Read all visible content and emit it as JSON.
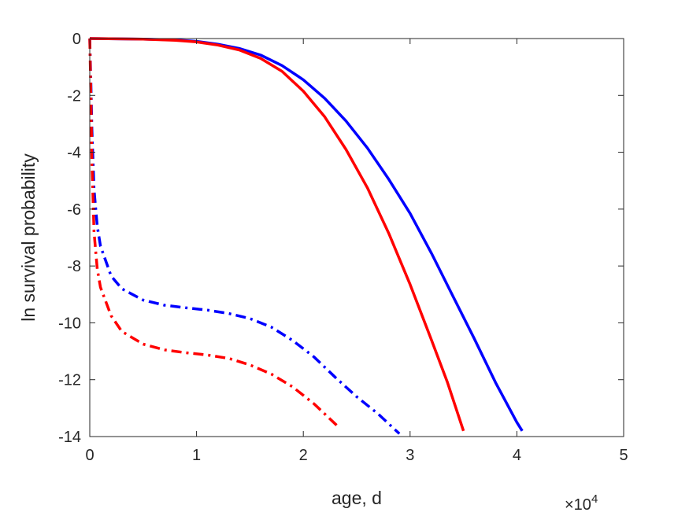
{
  "chart_data": {
    "type": "line",
    "xlabel": "age, d",
    "ylabel": "ln survival probability",
    "x_exponent_label": "×10",
    "x_exponent_power": "4",
    "xlim": [
      0,
      50000
    ],
    "ylim": [
      -14,
      0
    ],
    "x_ticks": [
      0,
      10000,
      20000,
      30000,
      40000,
      50000
    ],
    "x_tick_labels": [
      "0",
      "1",
      "2",
      "3",
      "4",
      "5"
    ],
    "y_ticks": [
      0,
      -2,
      -4,
      -6,
      -8,
      -10,
      -12,
      -14
    ],
    "y_tick_labels": [
      "0",
      "-2",
      "-4",
      "-6",
      "-8",
      "-10",
      "-12",
      "-14"
    ],
    "grid": false,
    "box": true,
    "series": [
      {
        "color": "#0000ff",
        "dash": "solid",
        "points": [
          [
            0,
            0
          ],
          [
            5000,
            -0.02
          ],
          [
            8000,
            -0.05
          ],
          [
            10000,
            -0.1
          ],
          [
            12000,
            -0.2
          ],
          [
            14000,
            -0.35
          ],
          [
            16000,
            -0.58
          ],
          [
            18000,
            -0.95
          ],
          [
            20000,
            -1.45
          ],
          [
            22000,
            -2.1
          ],
          [
            24000,
            -2.9
          ],
          [
            26000,
            -3.85
          ],
          [
            28000,
            -4.95
          ],
          [
            30000,
            -6.15
          ],
          [
            32000,
            -7.55
          ],
          [
            34000,
            -9.05
          ],
          [
            36000,
            -10.55
          ],
          [
            38000,
            -12.1
          ],
          [
            40000,
            -13.5
          ],
          [
            40500,
            -13.8
          ]
        ]
      },
      {
        "color": "#ff0000",
        "dash": "solid",
        "points": [
          [
            0,
            0
          ],
          [
            5000,
            -0.02
          ],
          [
            8000,
            -0.06
          ],
          [
            10000,
            -0.12
          ],
          [
            12000,
            -0.23
          ],
          [
            14000,
            -0.4
          ],
          [
            16000,
            -0.7
          ],
          [
            18000,
            -1.15
          ],
          [
            20000,
            -1.85
          ],
          [
            22000,
            -2.75
          ],
          [
            24000,
            -3.9
          ],
          [
            26000,
            -5.25
          ],
          [
            28000,
            -6.85
          ],
          [
            30000,
            -8.65
          ],
          [
            32000,
            -10.6
          ],
          [
            33500,
            -12.1
          ],
          [
            35000,
            -13.8
          ]
        ]
      },
      {
        "color": "#0000ff",
        "dash": "dashdot",
        "points": [
          [
            0,
            0
          ],
          [
            100,
            -1.5
          ],
          [
            200,
            -3.2
          ],
          [
            400,
            -5.3
          ],
          [
            700,
            -6.6
          ],
          [
            1000,
            -7.3
          ],
          [
            2000,
            -8.35
          ],
          [
            3000,
            -8.8
          ],
          [
            5000,
            -9.2
          ],
          [
            7000,
            -9.38
          ],
          [
            9000,
            -9.47
          ],
          [
            11000,
            -9.55
          ],
          [
            13000,
            -9.67
          ],
          [
            15000,
            -9.85
          ],
          [
            17000,
            -10.15
          ],
          [
            19000,
            -10.62
          ],
          [
            21000,
            -11.2
          ],
          [
            23000,
            -11.92
          ],
          [
            25000,
            -12.6
          ],
          [
            27000,
            -13.2
          ],
          [
            29000,
            -13.9
          ]
        ]
      },
      {
        "color": "#ff0000",
        "dash": "dashdot",
        "points": [
          [
            0,
            0
          ],
          [
            100,
            -2.0
          ],
          [
            200,
            -4.3
          ],
          [
            400,
            -6.8
          ],
          [
            700,
            -8.1
          ],
          [
            1000,
            -8.75
          ],
          [
            2000,
            -9.75
          ],
          [
            3000,
            -10.3
          ],
          [
            5000,
            -10.75
          ],
          [
            7000,
            -10.95
          ],
          [
            9000,
            -11.05
          ],
          [
            11000,
            -11.13
          ],
          [
            13000,
            -11.25
          ],
          [
            15000,
            -11.48
          ],
          [
            17000,
            -11.8
          ],
          [
            19000,
            -12.25
          ],
          [
            21000,
            -12.85
          ],
          [
            23400,
            -13.7
          ]
        ]
      }
    ]
  }
}
